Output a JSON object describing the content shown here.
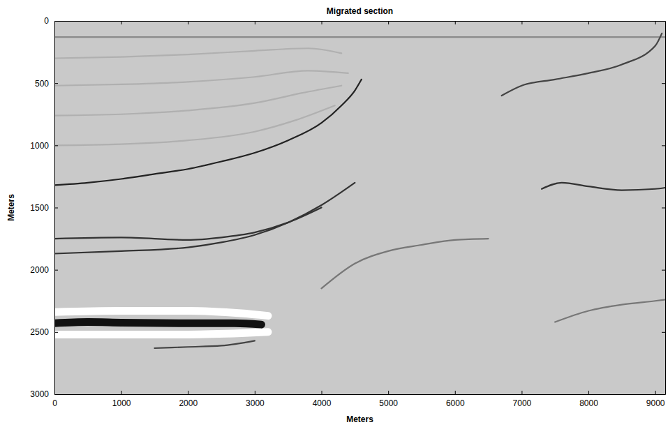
{
  "chart_data": {
    "type": "line",
    "title": "Migrated section",
    "x_label": "Meters",
    "y_label": "Meters",
    "xlim": [
      0,
      9150
    ],
    "ylim": [
      0,
      3000
    ],
    "xticks": [
      0,
      1000,
      2000,
      3000,
      4000,
      5000,
      6000,
      7000,
      8000,
      9000
    ],
    "yticks": [
      0,
      500,
      1000,
      1500,
      2000,
      2500,
      3000
    ],
    "grid": false,
    "series": [
      {
        "color": "#8a8a8a",
        "line_style": "solid",
        "x": [
          0,
          2000,
          4000,
          5800,
          6500,
          8000,
          9150
        ],
        "values": [
          130,
          130,
          130,
          130,
          130,
          130,
          130
        ]
      },
      {
        "color": "#b0b0b0",
        "line_style": "solid",
        "x": [
          0,
          1000,
          2000,
          3000,
          3800,
          4300
        ],
        "values": [
          300,
          290,
          270,
          240,
          220,
          260
        ]
      },
      {
        "color": "#b0b0b0",
        "line_style": "solid",
        "x": [
          0,
          1000,
          2000,
          3000,
          3800,
          4400
        ],
        "values": [
          520,
          510,
          490,
          450,
          400,
          420
        ]
      },
      {
        "color": "#b0b0b0",
        "line_style": "solid",
        "x": [
          0,
          1000,
          2000,
          3000,
          3700,
          4300
        ],
        "values": [
          760,
          750,
          720,
          660,
          580,
          520
        ]
      },
      {
        "color": "#b0b0b0",
        "line_style": "solid",
        "x": [
          0,
          1000,
          2000,
          3000,
          3600,
          4200
        ],
        "values": [
          1000,
          990,
          960,
          890,
          800,
          680
        ]
      },
      {
        "color": "#222222",
        "line_style": "solid",
        "x": [
          0,
          500,
          1000,
          1500,
          2000,
          2500,
          3000,
          3500,
          4000,
          4300,
          4500,
          4600
        ],
        "values": [
          1320,
          1300,
          1270,
          1230,
          1190,
          1130,
          1060,
          960,
          820,
          680,
          560,
          470
        ]
      },
      {
        "color": "#333333",
        "line_style": "solid",
        "x": [
          0,
          1000,
          2000,
          2500,
          3000,
          3500,
          4000
        ],
        "values": [
          1750,
          1740,
          1760,
          1740,
          1700,
          1620,
          1500
        ]
      },
      {
        "color": "#333333",
        "line_style": "solid",
        "x": [
          0,
          1000,
          2000,
          2500,
          3000,
          3500,
          4000,
          4500
        ],
        "values": [
          1870,
          1850,
          1820,
          1780,
          1720,
          1620,
          1480,
          1300
        ]
      },
      {
        "color": "#ffffff",
        "line_style": "thick",
        "x": [
          0,
          1000,
          2000,
          2800,
          3200
        ],
        "values": [
          2340,
          2330,
          2330,
          2350,
          2370
        ]
      },
      {
        "color": "#ffffff",
        "line_style": "thick",
        "x": [
          0,
          1000,
          2000,
          2800,
          3200
        ],
        "values": [
          2520,
          2520,
          2520,
          2510,
          2500
        ]
      },
      {
        "color": "#111111",
        "line_style": "thick",
        "x": [
          0,
          500,
          1000,
          2000,
          2700,
          3100
        ],
        "values": [
          2430,
          2420,
          2425,
          2430,
          2430,
          2440
        ]
      },
      {
        "color": "#444444",
        "line_style": "solid",
        "x": [
          1500,
          2000,
          2500,
          3000
        ],
        "values": [
          2630,
          2620,
          2610,
          2570
        ]
      },
      {
        "color": "#444444",
        "line_style": "solid",
        "x": [
          6700,
          7000,
          7500,
          8000,
          8500,
          9000,
          9100
        ],
        "values": [
          600,
          520,
          470,
          420,
          350,
          200,
          100
        ]
      },
      {
        "color": "#333333",
        "line_style": "solid",
        "x": [
          7300,
          7600,
          8000,
          8500,
          9000,
          9150
        ],
        "values": [
          1350,
          1300,
          1330,
          1360,
          1350,
          1340
        ]
      },
      {
        "color": "#777777",
        "line_style": "solid",
        "x": [
          4000,
          4500,
          5000,
          5500,
          6000,
          6500
        ],
        "values": [
          2150,
          1950,
          1850,
          1800,
          1760,
          1750
        ]
      },
      {
        "color": "#777777",
        "line_style": "solid",
        "x": [
          7500,
          8000,
          8500,
          9000,
          9150
        ],
        "values": [
          2420,
          2330,
          2280,
          2250,
          2240
        ]
      }
    ]
  }
}
